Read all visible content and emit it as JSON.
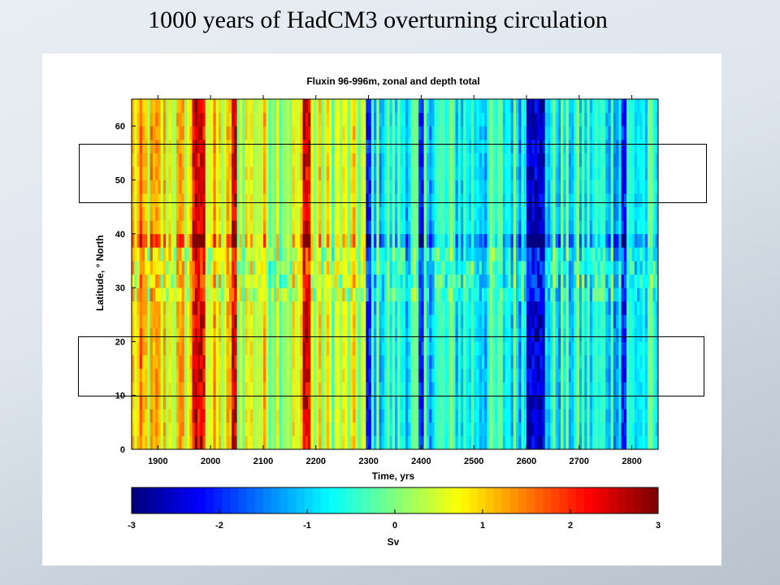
{
  "slide": {
    "title": "1000 years of HadCM3 overturning circulation"
  },
  "chart_data": {
    "type": "heatmap",
    "title": "Fluxin 96-996m, zonal and depth total",
    "xlabel": "Time, yrs",
    "ylabel": "Latitude, ° North",
    "x_ticks": [
      1900,
      2000,
      2100,
      2200,
      2300,
      2400,
      2500,
      2600,
      2700,
      2800
    ],
    "y_ticks": [
      0,
      10,
      20,
      30,
      40,
      50,
      60
    ],
    "xlim": [
      1850,
      2850
    ],
    "ylim": [
      0,
      65
    ],
    "colorbar": {
      "label": "Sv",
      "range": [
        -3,
        3
      ],
      "ticks": [
        -3,
        -2,
        -1,
        0,
        1,
        2,
        3
      ],
      "colormap": "jet"
    },
    "highlight_regions": [
      {
        "lat_range": [
          45,
          56
        ]
      },
      {
        "lat_range": [
          10,
          21
        ]
      }
    ],
    "features": [
      {
        "description": "Strong positive (red) vertical bands between 1850 and 2200"
      },
      {
        "description": "Predominantly negative (blue) values after 2400"
      },
      {
        "description": "Strong negative (dark blue) band near 2600-2630"
      },
      {
        "description": "Horizontal banding near 30-40 N latitude"
      }
    ]
  }
}
